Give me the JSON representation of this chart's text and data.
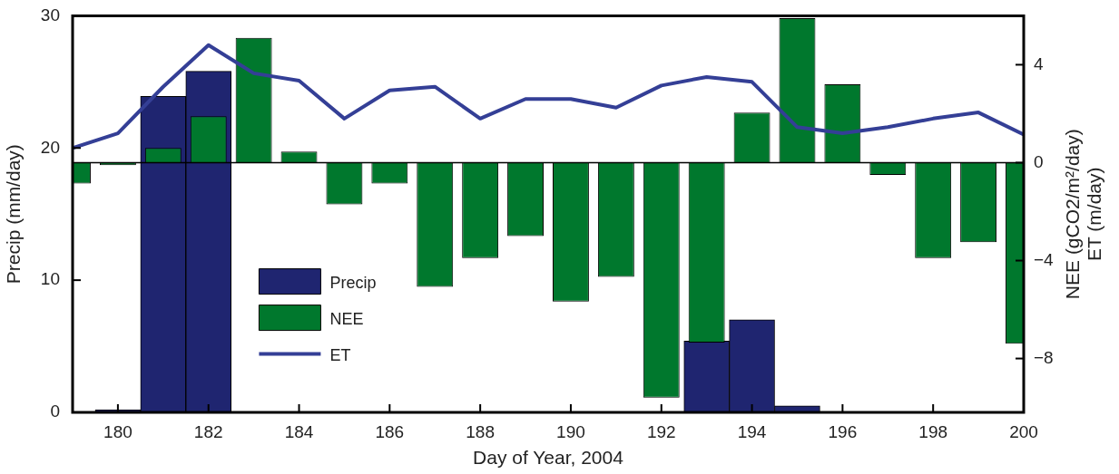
{
  "chart_data": {
    "type": "bar",
    "xlabel": "Day of Year, 2004",
    "ylabel": "Precip (mm/day)",
    "y2label": "NEE (gCO2/m²/day)\nET (m/day)",
    "xlim": [
      179,
      200
    ],
    "xticks": [
      180,
      182,
      184,
      186,
      188,
      190,
      192,
      194,
      196,
      198,
      200
    ],
    "ylim": [
      0,
      30
    ],
    "yticks": [
      0,
      10,
      20,
      30
    ],
    "y2lim": [
      -10.2,
      6
    ],
    "y2ticks": [
      {
        "value": -8,
        "label": "−8"
      },
      {
        "value": -4,
        "label": "−4"
      },
      0,
      4
    ],
    "series": [
      {
        "name": "Precip",
        "color": "#1f2570",
        "x": [
          180,
          181,
          182,
          193,
          194,
          195
        ],
        "values": [
          0.2,
          23.9,
          25.8,
          5.4,
          7.0,
          0.5
        ]
      },
      {
        "name": "NEE",
        "axis": "y2",
        "color": "#00782d",
        "x": [
          179,
          180,
          181,
          182,
          183,
          184,
          185,
          186,
          187,
          188,
          189,
          190,
          191,
          192,
          193,
          194,
          195,
          196,
          197,
          198,
          199,
          200
        ],
        "values": [
          -0.85,
          -0.1,
          0.6,
          1.9,
          5.1,
          0.45,
          -1.7,
          -0.85,
          -5.07,
          -3.9,
          -3.0,
          -5.67,
          -4.67,
          -9.6,
          -7.35,
          2.04,
          5.9,
          3.2,
          -0.5,
          -3.9,
          -3.25,
          -7.4
        ]
      },
      {
        "name": "ET",
        "type": "line",
        "axis": "y2",
        "color": "#343f96",
        "x": [
          179,
          180,
          181,
          182,
          183,
          184,
          185,
          186,
          187,
          188,
          189,
          190,
          191,
          192,
          193,
          194,
          195,
          196,
          197,
          198,
          199,
          200
        ],
        "values": [
          0.6,
          1.2,
          3.1,
          4.8,
          3.65,
          3.35,
          1.8,
          2.95,
          3.1,
          1.8,
          2.6,
          2.6,
          2.25,
          3.15,
          3.5,
          3.3,
          1.45,
          1.2,
          1.45,
          1.8,
          2.05,
          1.15
        ]
      }
    ],
    "ref_lines": [
      {
        "axis": "y2",
        "value": 0,
        "color": "#000000"
      }
    ],
    "legend": "bottom left",
    "grid": false,
    "marker": "none",
    "line_style": "solid"
  }
}
